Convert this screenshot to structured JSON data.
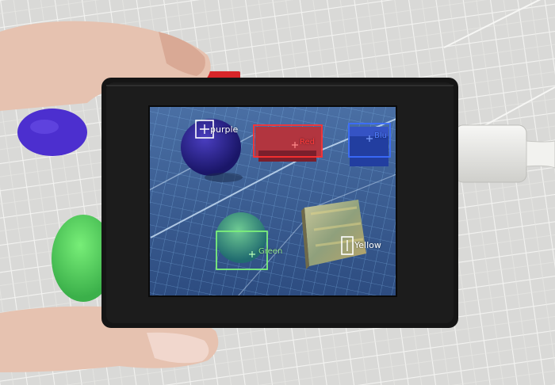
{
  "detections": [
    {
      "id": "purple",
      "label": "purple",
      "color": "#ffffff"
    },
    {
      "id": "red",
      "label": "Red",
      "color": "#ff3a3a"
    },
    {
      "id": "blue",
      "label": "Blu",
      "color": "#4f7dff"
    },
    {
      "id": "green",
      "label": "Green",
      "color": "#8fe28a"
    },
    {
      "id": "yellow",
      "label": "Yellow",
      "color": "#ffffff"
    }
  ]
}
